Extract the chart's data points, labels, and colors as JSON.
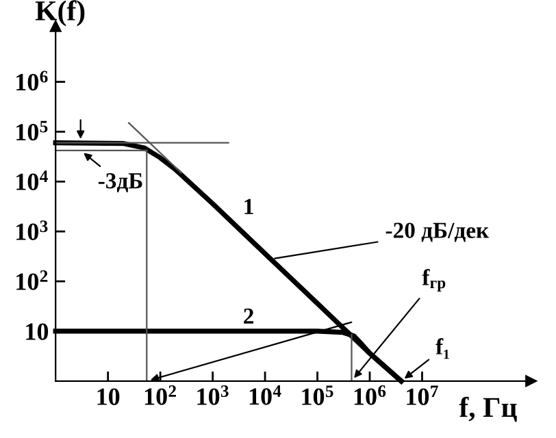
{
  "chart_data": {
    "type": "line",
    "xlabel": "f, Гц",
    "ylabel": "K(f)",
    "log": "xy",
    "xlim": [
      1,
      1200000000
    ],
    "ylim": [
      1,
      13000000
    ],
    "xticks": [
      10,
      {
        "value": 100,
        "label": "10$^{2}$"
      },
      {
        "value": 1000,
        "label": "10$^{3}$"
      },
      {
        "value": 10000,
        "label": "10$^{4}$"
      },
      {
        "value": 100000,
        "label": "10$^{5}$"
      },
      {
        "value": 1000000,
        "label": "10$^{6}$"
      },
      {
        "value": 10000000,
        "label": "10$^{7}$"
      }
    ],
    "yticks": [
      10,
      {
        "value": 100,
        "label": "10$^{2}$"
      },
      {
        "value": 1000,
        "label": "10$^{3}$"
      },
      {
        "value": 10000,
        "label": "10$^{4}$"
      },
      {
        "value": 100000,
        "label": "10$^{5}$"
      },
      {
        "value": 1000000,
        "label": "10$^{6}$"
      }
    ],
    "grid": false,
    "legend": false,
    "marker": "none",
    "line_style": "solid",
    "series": [
      {
        "name": "1",
        "color": "#000000",
        "x": [
          1,
          20,
          50,
          100,
          200,
          1000,
          10000,
          100000,
          1000000,
          4000000
        ],
        "values": [
          60000,
          58000,
          47000,
          30000,
          17000,
          3600,
          360,
          36,
          3.6,
          1
        ]
      },
      {
        "name": "2",
        "color": "#000000",
        "x": [
          1,
          100000,
          300000,
          500000,
          700000,
          1000000,
          4000000
        ],
        "values": [
          10,
          10,
          9.5,
          8,
          5.5,
          3.6,
          1
        ]
      },
      {
        "color": "#555555",
        "x": [
          1,
          2000
        ],
        "values": [
          60000,
          60000
        ]
      },
      {
        "color": "#555555",
        "x": [
          25,
          250
        ],
        "values": [
          150000,
          15000
        ]
      },
      {
        "color": "#555555",
        "x": [
          1,
          55
        ],
        "values": [
          42000,
          42000
        ]
      },
      {
        "color": "#555555",
        "x": [
          55,
          55
        ],
        "values": [
          42000,
          1
        ]
      },
      {
        "color": "#555555",
        "x": [
          450000,
          450000
        ],
        "values": [
          8.5,
          1
        ]
      }
    ],
    "annotations": [
      {
        "text": "-3дБ",
        "x": 3,
        "y": 42000
      },
      {
        "text": "-20 дБ/дек",
        "x": 13000,
        "y": 280
      },
      {
        "text": "f$_{гр}$",
        "x": 450000,
        "y": 1
      },
      {
        "text": "f₁",
        "x": 4000000,
        "y": 1
      }
    ]
  }
}
